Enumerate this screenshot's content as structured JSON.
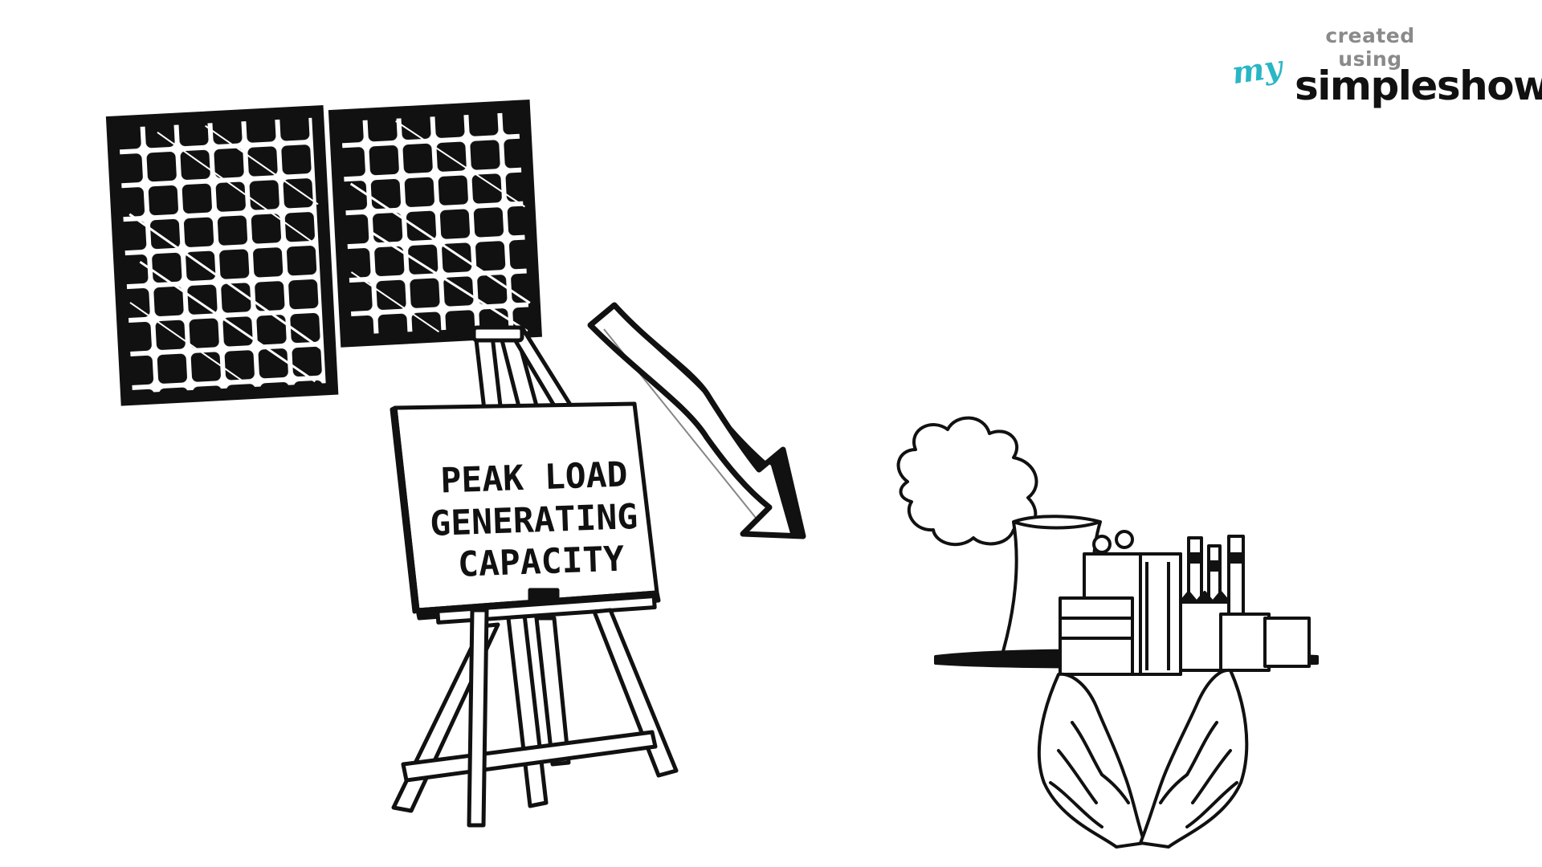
{
  "watermark": {
    "created_using": "created using",
    "my": "my",
    "brand": "simpleshow",
    "registered": "®"
  },
  "sign": {
    "line1": "PEAK LOAD",
    "line2": "GENERATING",
    "line3": "CAPACITY"
  },
  "colors": {
    "ink": "#111111",
    "paper": "#ffffff",
    "brand_accent": "#29b6c6",
    "watermark_gray": "#8a8a8a"
  },
  "icons": [
    "solar-panel-icon",
    "easel-icon",
    "down-arrow-icon",
    "power-plant-icon",
    "hands-icon"
  ]
}
